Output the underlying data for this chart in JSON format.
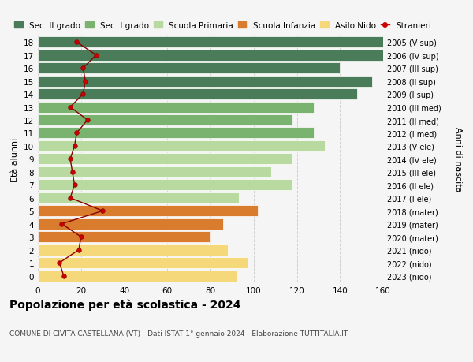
{
  "ages": [
    18,
    17,
    16,
    15,
    14,
    13,
    12,
    11,
    10,
    9,
    8,
    7,
    6,
    5,
    4,
    3,
    2,
    1,
    0
  ],
  "right_labels": [
    "2005 (V sup)",
    "2006 (IV sup)",
    "2007 (III sup)",
    "2008 (II sup)",
    "2009 (I sup)",
    "2010 (III med)",
    "2011 (II med)",
    "2012 (I med)",
    "2013 (V ele)",
    "2014 (IV ele)",
    "2015 (III ele)",
    "2016 (II ele)",
    "2017 (I ele)",
    "2018 (mater)",
    "2019 (mater)",
    "2020 (mater)",
    "2021 (nido)",
    "2022 (nido)",
    "2023 (nido)"
  ],
  "bar_values": [
    160,
    160,
    140,
    155,
    148,
    128,
    118,
    128,
    133,
    118,
    108,
    118,
    93,
    102,
    86,
    80,
    88,
    97,
    92
  ],
  "bar_colors": [
    "#4a7c59",
    "#4a7c59",
    "#4a7c59",
    "#4a7c59",
    "#4a7c59",
    "#7ab370",
    "#7ab370",
    "#7ab370",
    "#b8d9a0",
    "#b8d9a0",
    "#b8d9a0",
    "#b8d9a0",
    "#b8d9a0",
    "#d97c2e",
    "#d97c2e",
    "#d97c2e",
    "#f5d87a",
    "#f5d87a",
    "#f5d87a"
  ],
  "stranieri_values": [
    18,
    27,
    21,
    22,
    21,
    15,
    23,
    18,
    17,
    15,
    16,
    17,
    15,
    30,
    11,
    20,
    19,
    10,
    12
  ],
  "legend_labels": [
    "Sec. II grado",
    "Sec. I grado",
    "Scuola Primaria",
    "Scuola Infanzia",
    "Asilo Nido",
    "Stranieri"
  ],
  "legend_colors": [
    "#4a7c59",
    "#7ab370",
    "#b8d9a0",
    "#d97c2e",
    "#f5d87a",
    "#cc0000"
  ],
  "title": "Popolazione per età scolastica - 2024",
  "subtitle": "COMUNE DI CIVITA CASTELLANA (VT) - Dati ISTAT 1° gennaio 2024 - Elaborazione TUTTITALIA.IT",
  "ylabel_left": "Età alunni",
  "ylabel_right": "Anni di nascita",
  "xlim": [
    0,
    160
  ],
  "background_color": "#f5f5f5",
  "grid_color": "#cccccc"
}
